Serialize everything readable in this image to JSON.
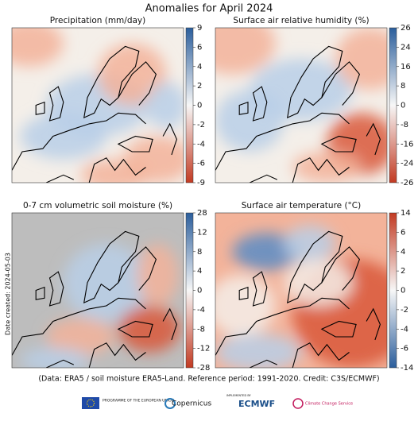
{
  "title": "Anomalies for April 2024",
  "panels": [
    {
      "title": "Precipitation (mm/day)",
      "colorbar": {
        "ticks": [
          9,
          6,
          4,
          2,
          0,
          -2,
          -4,
          -6,
          -9
        ],
        "top_color": "#2b5e9c",
        "bottom_color": "#c23a22"
      }
    },
    {
      "title": "Surface air relative humidity (%)",
      "colorbar": {
        "ticks": [
          26,
          24,
          16,
          8,
          0,
          -8,
          -16,
          -24,
          -26
        ],
        "top_color": "#2b5e9c",
        "bottom_color": "#c23a22"
      }
    },
    {
      "title": "0-7 cm volumetric soil moisture (%)",
      "colorbar": {
        "ticks": [
          28,
          12,
          8,
          4,
          0,
          -4,
          -8,
          -12,
          -28
        ],
        "top_color": "#2b5e9c",
        "bottom_color": "#c23a22"
      }
    },
    {
      "title": "Surface air temperature (°C)",
      "colorbar": {
        "ticks": [
          14,
          6,
          4,
          2,
          0,
          -2,
          -4,
          -6,
          -14
        ],
        "top_color": "#c23a22",
        "bottom_color": "#2b5e9c"
      }
    }
  ],
  "date_created": "Date created: 2024-05-03",
  "footnote": "(Data: ERA5 / soil moisture ERA5-Land.  Reference period: 1991-2020.  Credit: C3S/ECMWF)",
  "logos": {
    "eu": "PROGRAMME OF THE EUROPEAN UNION",
    "copernicus": "Copernicus",
    "implemented": "IMPLEMENTED BY",
    "ecmwf": "ECMWF",
    "c3s": "Climate Change Service"
  }
}
